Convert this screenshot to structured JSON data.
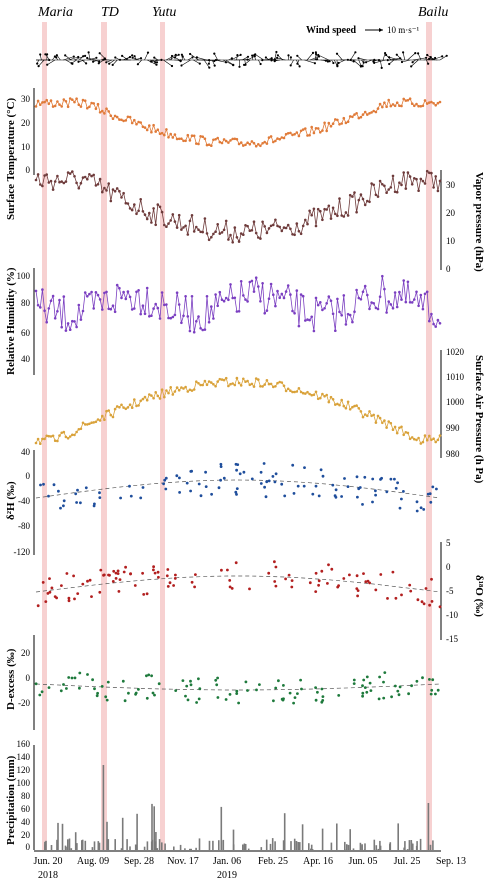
{
  "event_labels": [
    "Maria",
    "TD",
    "Yutu",
    "Bailu"
  ],
  "x_axis": {
    "tick_labels": [
      "Jun. 20",
      "Aug. 09",
      "Sep. 28",
      "Nov. 17",
      "Jan. 06",
      "Feb. 25",
      "Apr. 16",
      "Jun. 05",
      "Jul. 25",
      "Sep. 13"
    ],
    "year_labels": [
      "2018",
      "2019"
    ]
  },
  "wind_legend": {
    "label": "Wind speed",
    "arrow_text": "10 m·s⁻¹"
  },
  "colors": {
    "highlight": "#f6c9c9",
    "wind": "#000000",
    "temperature": "#e07b39",
    "vapor": "#6e3b3b",
    "humidity": "#7b3fc1",
    "pressure": "#d9a23a",
    "dH": "#1f4e9c",
    "d18O": "#b21f1f",
    "dexcess": "#1e7a3c",
    "precip": "#7a7a7a"
  },
  "chart_data": [
    {
      "type": "line",
      "name": "wind",
      "ylabel": "",
      "legend": "Wind speed"
    },
    {
      "type": "line",
      "ylabel": "Surface Temperature (°C)",
      "ylim": [
        0,
        35
      ],
      "yticks": [
        "0",
        "10",
        "20",
        "30"
      ]
    },
    {
      "type": "line",
      "ylabel": "Vapor pressure (hPa)",
      "ylim": [
        0,
        36
      ],
      "yticks": [
        "0",
        "10",
        "20",
        "30"
      ]
    },
    {
      "type": "line",
      "ylabel": "Relative Humidity (%)",
      "ylim": [
        20,
        100
      ],
      "yticks": [
        "40",
        "60",
        "80",
        "100"
      ]
    },
    {
      "type": "line",
      "ylabel": "Surface Air Pressure (h Pa)",
      "ylim": [
        980,
        1020
      ],
      "yticks": [
        "980",
        "990",
        "1000",
        "1010",
        "1020"
      ]
    },
    {
      "type": "line",
      "ylabel": "δ²H (‰)",
      "ylim": [
        -120,
        40
      ],
      "yticks": [
        "40",
        "0",
        "-40",
        "-80",
        "-120"
      ]
    },
    {
      "type": "line",
      "ylabel": "δ¹⁸O (‰)",
      "ylim": [
        -15,
        5
      ],
      "yticks": [
        "5",
        "0",
        "-5",
        "-10",
        "-15"
      ]
    },
    {
      "type": "line",
      "ylabel": "D-excess (‰)",
      "ylim": [
        -20,
        30
      ],
      "yticks": [
        "20",
        "0",
        "-20"
      ]
    },
    {
      "type": "bar",
      "ylabel": "Precipitation (mm)",
      "ylim": [
        0,
        160
      ],
      "yticks": [
        "0",
        "20",
        "40",
        "60",
        "80",
        "100",
        "120",
        "140",
        "160"
      ]
    }
  ]
}
